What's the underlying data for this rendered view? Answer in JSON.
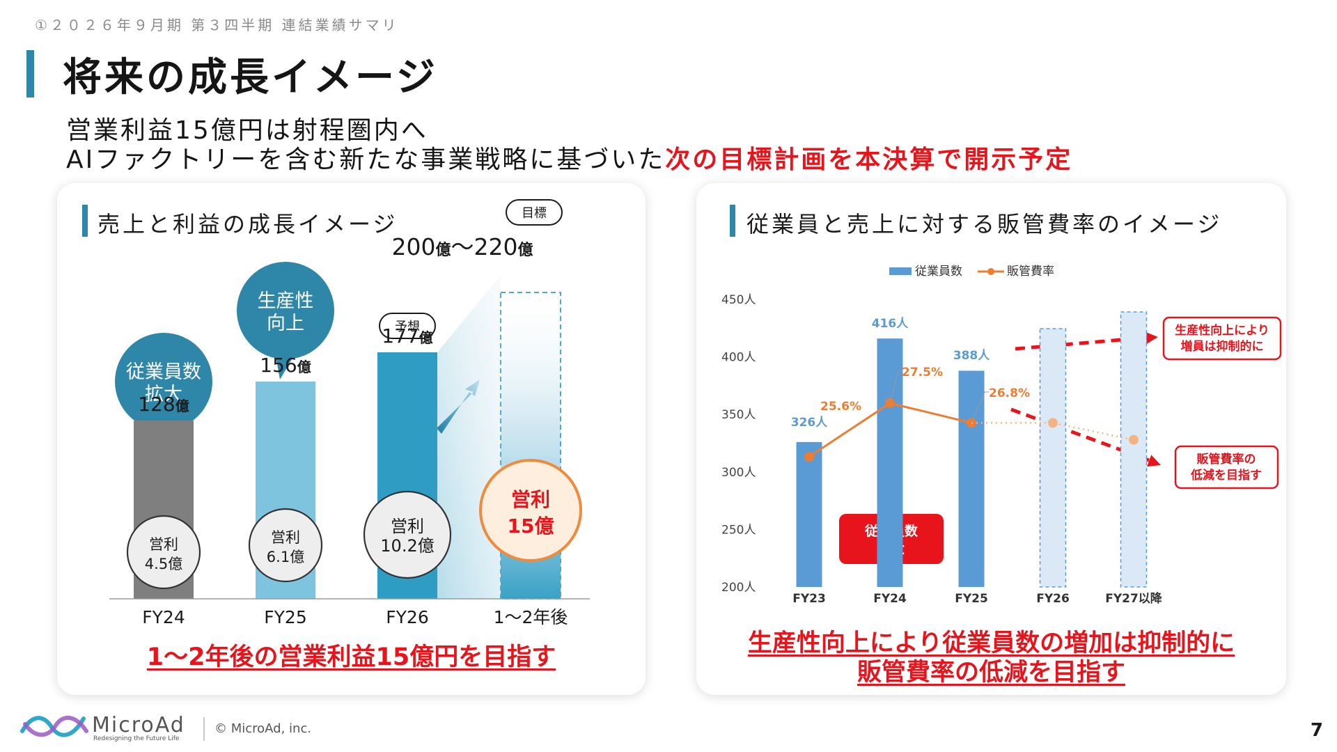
{
  "header": {
    "breadcrumb": "①２０２６年９月期 第３四半期 連結業績サマリ",
    "title": "将来の成長イメージ",
    "subtitle_line1": "営業利益15億円は射程圏内へ",
    "subtitle_line2_prefix": "AIファクトリーを含む新たな事業戦略に基づいた",
    "subtitle_line2_highlight": "次の目標計画を本決算で開示予定"
  },
  "left_panel": {
    "title": "売上と利益の成長イメージ",
    "target_badge": "目標",
    "target_value": "200億〜220億",
    "forecast_badge": "予想",
    "bubble_fy24": [
      "従業員数",
      "拡大"
    ],
    "bubble_fy25": [
      "生産性",
      "向上"
    ],
    "caption": "1〜2年後の営業利益15億円を目指す"
  },
  "right_panel": {
    "title": "従業員と売上に対する販管費率のイメージ",
    "callout_top": [
      "生産性向上により",
      "増員は抑制的に"
    ],
    "callout_bottom": [
      "販管費率の",
      "低減を目指す"
    ],
    "callout_fy24": [
      "従業員数",
      "拡大"
    ],
    "caption_line1": "生産性向上により従業員数の増加は抑制的に",
    "caption_line2": "販管費率の低減を目指す"
  },
  "chart_data": [
    {
      "type": "bar",
      "categories": [
        "FY24",
        "FY25",
        "FY26",
        "1〜2年後"
      ],
      "series": [
        {
          "name": "",
          "values": [
            128,
            156,
            177,
            null
          ],
          "value_labels": [
            "128億",
            "156億",
            "177億",
            ""
          ],
          "colors": [
            "#7f7f7f",
            "#7ec4de",
            "#2e9cc3",
            "#e9f2f7"
          ]
        }
      ],
      "target_range": {
        "min": 200,
        "max": 220,
        "label": "200億〜220億",
        "category": "1〜2年後"
      },
      "operating_profit": {
        "values": [
          4.5,
          6.1,
          10.2,
          15
        ],
        "labels": [
          [
            "営利",
            "4.5億"
          ],
          [
            "営利",
            "6.1億"
          ],
          [
            "営利",
            "10.2億"
          ],
          [
            "営利",
            "15億"
          ]
        ]
      },
      "title": "売上と利益の成長イメージ",
      "ylim": [
        0,
        230
      ],
      "grid": false,
      "colors": {
        "accent": "#2e87a8",
        "highlight": "#e8141c",
        "target_circle": "#f08a3c"
      }
    },
    {
      "type": "bar",
      "categories": [
        "FY23",
        "FY24",
        "FY25",
        "FY26",
        "FY27以降"
      ],
      "series": [
        {
          "name": "従業員数",
          "type": "bar",
          "values": [
            326,
            416,
            388,
            null,
            null
          ],
          "labels": [
            "326人",
            "416人",
            "388人",
            "",
            ""
          ],
          "color": "#5b9bd5"
        },
        {
          "name": "販管費率",
          "type": "line",
          "values": [
            25.6,
            27.5,
            26.8,
            null,
            null
          ],
          "labels": [
            "25.6%",
            "27.5%",
            "26.8%",
            "",
            ""
          ],
          "projected": [
            null,
            null,
            26.8,
            26.8,
            26.2
          ],
          "color": "#ed7d31"
        }
      ],
      "projection_placeholders": [
        "FY26",
        "FY27以降"
      ],
      "yticks": [
        "450人",
        "400人",
        "350人",
        "300人",
        "250人",
        "200人"
      ],
      "ylim": [
        200,
        450
      ],
      "legend": "top",
      "grid": false
    }
  ]
}
